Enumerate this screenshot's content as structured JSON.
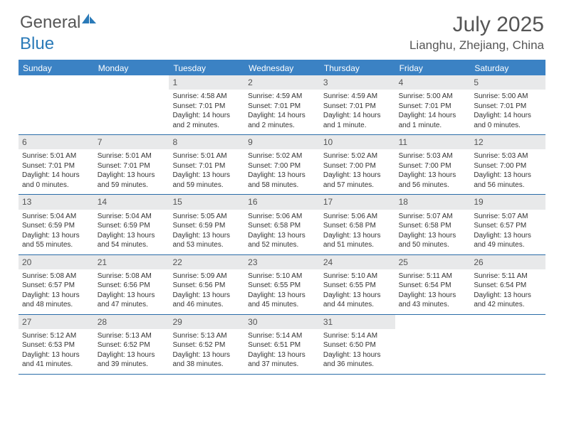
{
  "logo": {
    "text_a": "General",
    "text_b": "Blue"
  },
  "title": "July 2025",
  "location": "Lianghu, Zhejiang, China",
  "colors": {
    "header_bar": "#3b82c4",
    "row_divider": "#2a6ca8",
    "day_number_bg": "#e8e9ea",
    "text_muted": "#555"
  },
  "weekdays": [
    "Sunday",
    "Monday",
    "Tuesday",
    "Wednesday",
    "Thursday",
    "Friday",
    "Saturday"
  ],
  "weeks": [
    [
      {},
      {},
      {
        "n": "1",
        "sr": "Sunrise: 4:58 AM",
        "ss": "Sunset: 7:01 PM",
        "d1": "Daylight: 14 hours",
        "d2": "and 2 minutes."
      },
      {
        "n": "2",
        "sr": "Sunrise: 4:59 AM",
        "ss": "Sunset: 7:01 PM",
        "d1": "Daylight: 14 hours",
        "d2": "and 2 minutes."
      },
      {
        "n": "3",
        "sr": "Sunrise: 4:59 AM",
        "ss": "Sunset: 7:01 PM",
        "d1": "Daylight: 14 hours",
        "d2": "and 1 minute."
      },
      {
        "n": "4",
        "sr": "Sunrise: 5:00 AM",
        "ss": "Sunset: 7:01 PM",
        "d1": "Daylight: 14 hours",
        "d2": "and 1 minute."
      },
      {
        "n": "5",
        "sr": "Sunrise: 5:00 AM",
        "ss": "Sunset: 7:01 PM",
        "d1": "Daylight: 14 hours",
        "d2": "and 0 minutes."
      }
    ],
    [
      {
        "n": "6",
        "sr": "Sunrise: 5:01 AM",
        "ss": "Sunset: 7:01 PM",
        "d1": "Daylight: 14 hours",
        "d2": "and 0 minutes."
      },
      {
        "n": "7",
        "sr": "Sunrise: 5:01 AM",
        "ss": "Sunset: 7:01 PM",
        "d1": "Daylight: 13 hours",
        "d2": "and 59 minutes."
      },
      {
        "n": "8",
        "sr": "Sunrise: 5:01 AM",
        "ss": "Sunset: 7:01 PM",
        "d1": "Daylight: 13 hours",
        "d2": "and 59 minutes."
      },
      {
        "n": "9",
        "sr": "Sunrise: 5:02 AM",
        "ss": "Sunset: 7:00 PM",
        "d1": "Daylight: 13 hours",
        "d2": "and 58 minutes."
      },
      {
        "n": "10",
        "sr": "Sunrise: 5:02 AM",
        "ss": "Sunset: 7:00 PM",
        "d1": "Daylight: 13 hours",
        "d2": "and 57 minutes."
      },
      {
        "n": "11",
        "sr": "Sunrise: 5:03 AM",
        "ss": "Sunset: 7:00 PM",
        "d1": "Daylight: 13 hours",
        "d2": "and 56 minutes."
      },
      {
        "n": "12",
        "sr": "Sunrise: 5:03 AM",
        "ss": "Sunset: 7:00 PM",
        "d1": "Daylight: 13 hours",
        "d2": "and 56 minutes."
      }
    ],
    [
      {
        "n": "13",
        "sr": "Sunrise: 5:04 AM",
        "ss": "Sunset: 6:59 PM",
        "d1": "Daylight: 13 hours",
        "d2": "and 55 minutes."
      },
      {
        "n": "14",
        "sr": "Sunrise: 5:04 AM",
        "ss": "Sunset: 6:59 PM",
        "d1": "Daylight: 13 hours",
        "d2": "and 54 minutes."
      },
      {
        "n": "15",
        "sr": "Sunrise: 5:05 AM",
        "ss": "Sunset: 6:59 PM",
        "d1": "Daylight: 13 hours",
        "d2": "and 53 minutes."
      },
      {
        "n": "16",
        "sr": "Sunrise: 5:06 AM",
        "ss": "Sunset: 6:58 PM",
        "d1": "Daylight: 13 hours",
        "d2": "and 52 minutes."
      },
      {
        "n": "17",
        "sr": "Sunrise: 5:06 AM",
        "ss": "Sunset: 6:58 PM",
        "d1": "Daylight: 13 hours",
        "d2": "and 51 minutes."
      },
      {
        "n": "18",
        "sr": "Sunrise: 5:07 AM",
        "ss": "Sunset: 6:58 PM",
        "d1": "Daylight: 13 hours",
        "d2": "and 50 minutes."
      },
      {
        "n": "19",
        "sr": "Sunrise: 5:07 AM",
        "ss": "Sunset: 6:57 PM",
        "d1": "Daylight: 13 hours",
        "d2": "and 49 minutes."
      }
    ],
    [
      {
        "n": "20",
        "sr": "Sunrise: 5:08 AM",
        "ss": "Sunset: 6:57 PM",
        "d1": "Daylight: 13 hours",
        "d2": "and 48 minutes."
      },
      {
        "n": "21",
        "sr": "Sunrise: 5:08 AM",
        "ss": "Sunset: 6:56 PM",
        "d1": "Daylight: 13 hours",
        "d2": "and 47 minutes."
      },
      {
        "n": "22",
        "sr": "Sunrise: 5:09 AM",
        "ss": "Sunset: 6:56 PM",
        "d1": "Daylight: 13 hours",
        "d2": "and 46 minutes."
      },
      {
        "n": "23",
        "sr": "Sunrise: 5:10 AM",
        "ss": "Sunset: 6:55 PM",
        "d1": "Daylight: 13 hours",
        "d2": "and 45 minutes."
      },
      {
        "n": "24",
        "sr": "Sunrise: 5:10 AM",
        "ss": "Sunset: 6:55 PM",
        "d1": "Daylight: 13 hours",
        "d2": "and 44 minutes."
      },
      {
        "n": "25",
        "sr": "Sunrise: 5:11 AM",
        "ss": "Sunset: 6:54 PM",
        "d1": "Daylight: 13 hours",
        "d2": "and 43 minutes."
      },
      {
        "n": "26",
        "sr": "Sunrise: 5:11 AM",
        "ss": "Sunset: 6:54 PM",
        "d1": "Daylight: 13 hours",
        "d2": "and 42 minutes."
      }
    ],
    [
      {
        "n": "27",
        "sr": "Sunrise: 5:12 AM",
        "ss": "Sunset: 6:53 PM",
        "d1": "Daylight: 13 hours",
        "d2": "and 41 minutes."
      },
      {
        "n": "28",
        "sr": "Sunrise: 5:13 AM",
        "ss": "Sunset: 6:52 PM",
        "d1": "Daylight: 13 hours",
        "d2": "and 39 minutes."
      },
      {
        "n": "29",
        "sr": "Sunrise: 5:13 AM",
        "ss": "Sunset: 6:52 PM",
        "d1": "Daylight: 13 hours",
        "d2": "and 38 minutes."
      },
      {
        "n": "30",
        "sr": "Sunrise: 5:14 AM",
        "ss": "Sunset: 6:51 PM",
        "d1": "Daylight: 13 hours",
        "d2": "and 37 minutes."
      },
      {
        "n": "31",
        "sr": "Sunrise: 5:14 AM",
        "ss": "Sunset: 6:50 PM",
        "d1": "Daylight: 13 hours",
        "d2": "and 36 minutes."
      },
      {},
      {}
    ]
  ]
}
